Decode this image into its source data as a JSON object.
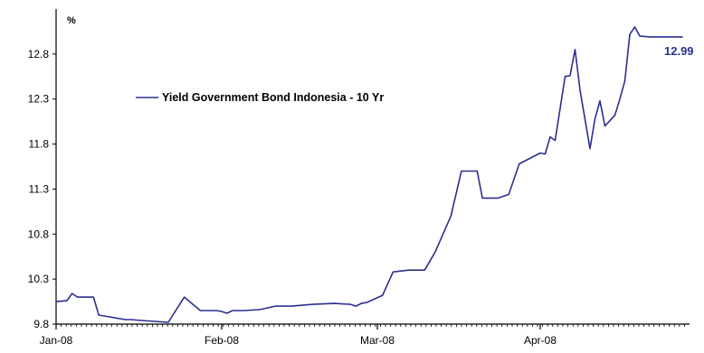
{
  "chart_data": {
    "type": "line",
    "title": "",
    "unit_label": "%",
    "xlabel": "",
    "ylabel": "%",
    "x_tick_labels": [
      "Jan-08",
      "Feb-08",
      "Mar-08",
      "Apr-08"
    ],
    "y_tick_labels": [
      "9.8",
      "10.3",
      "10.8",
      "11.3",
      "11.8",
      "12.3",
      "12.8"
    ],
    "ylim": [
      9.8,
      13.3
    ],
    "grid": false,
    "legend_position": "center-left",
    "series": [
      {
        "name": "Yield Government Bond Indonesia - 10 Yr",
        "color": "#2b2f8f",
        "end_label": "12.99",
        "x": [
          "Jan-01",
          "Jan-03",
          "Jan-04",
          "Jan-05",
          "Jan-07",
          "Jan-08",
          "Jan-09",
          "Jan-11",
          "Jan-14",
          "Jan-15",
          "Jan-17",
          "Jan-22",
          "Jan-25",
          "Jan-28",
          "Jan-31",
          "Feb-01",
          "Feb-02",
          "Feb-03",
          "Feb-05",
          "Feb-08",
          "Feb-11",
          "Feb-14",
          "Feb-18",
          "Feb-22",
          "Feb-25",
          "Feb-26",
          "Feb-27",
          "Feb-28",
          "Mar-02",
          "Mar-04",
          "Mar-07",
          "Mar-10",
          "Mar-12",
          "Mar-15",
          "Mar-17",
          "Mar-20",
          "Mar-21",
          "Mar-23",
          "Mar-24",
          "Mar-26",
          "Mar-28",
          "Apr-01",
          "Apr-02",
          "Apr-03",
          "Apr-04",
          "Apr-06",
          "Apr-07",
          "Apr-08",
          "Apr-09",
          "Apr-11",
          "Apr-12",
          "Apr-13",
          "Apr-14",
          "Apr-16",
          "Apr-17",
          "Apr-18",
          "Apr-19",
          "Apr-20",
          "Apr-21",
          "Apr-23",
          "Apr-26",
          "Apr-27",
          "Apr-28",
          "Apr-29",
          "Apr-30",
          "May-02"
        ],
        "values": [
          10.05,
          10.06,
          10.14,
          10.1,
          10.1,
          10.1,
          9.9,
          9.88,
          9.85,
          9.85,
          9.84,
          9.82,
          10.1,
          9.95,
          9.95,
          9.94,
          9.92,
          9.95,
          9.95,
          9.96,
          10.0,
          10.0,
          10.02,
          10.03,
          10.02,
          10.0,
          10.03,
          10.04,
          10.12,
          10.38,
          10.4,
          10.4,
          10.6,
          11.0,
          11.5,
          11.5,
          11.2,
          11.2,
          11.2,
          11.24,
          11.58,
          11.7,
          11.69,
          11.88,
          11.84,
          12.55,
          12.56,
          12.85,
          12.4,
          11.75,
          12.08,
          12.28,
          12.0,
          12.12,
          12.3,
          12.5,
          13.02,
          13.1,
          13.0,
          12.99,
          12.99,
          12.99,
          12.99,
          12.99,
          12.99,
          12.99
        ]
      }
    ]
  }
}
